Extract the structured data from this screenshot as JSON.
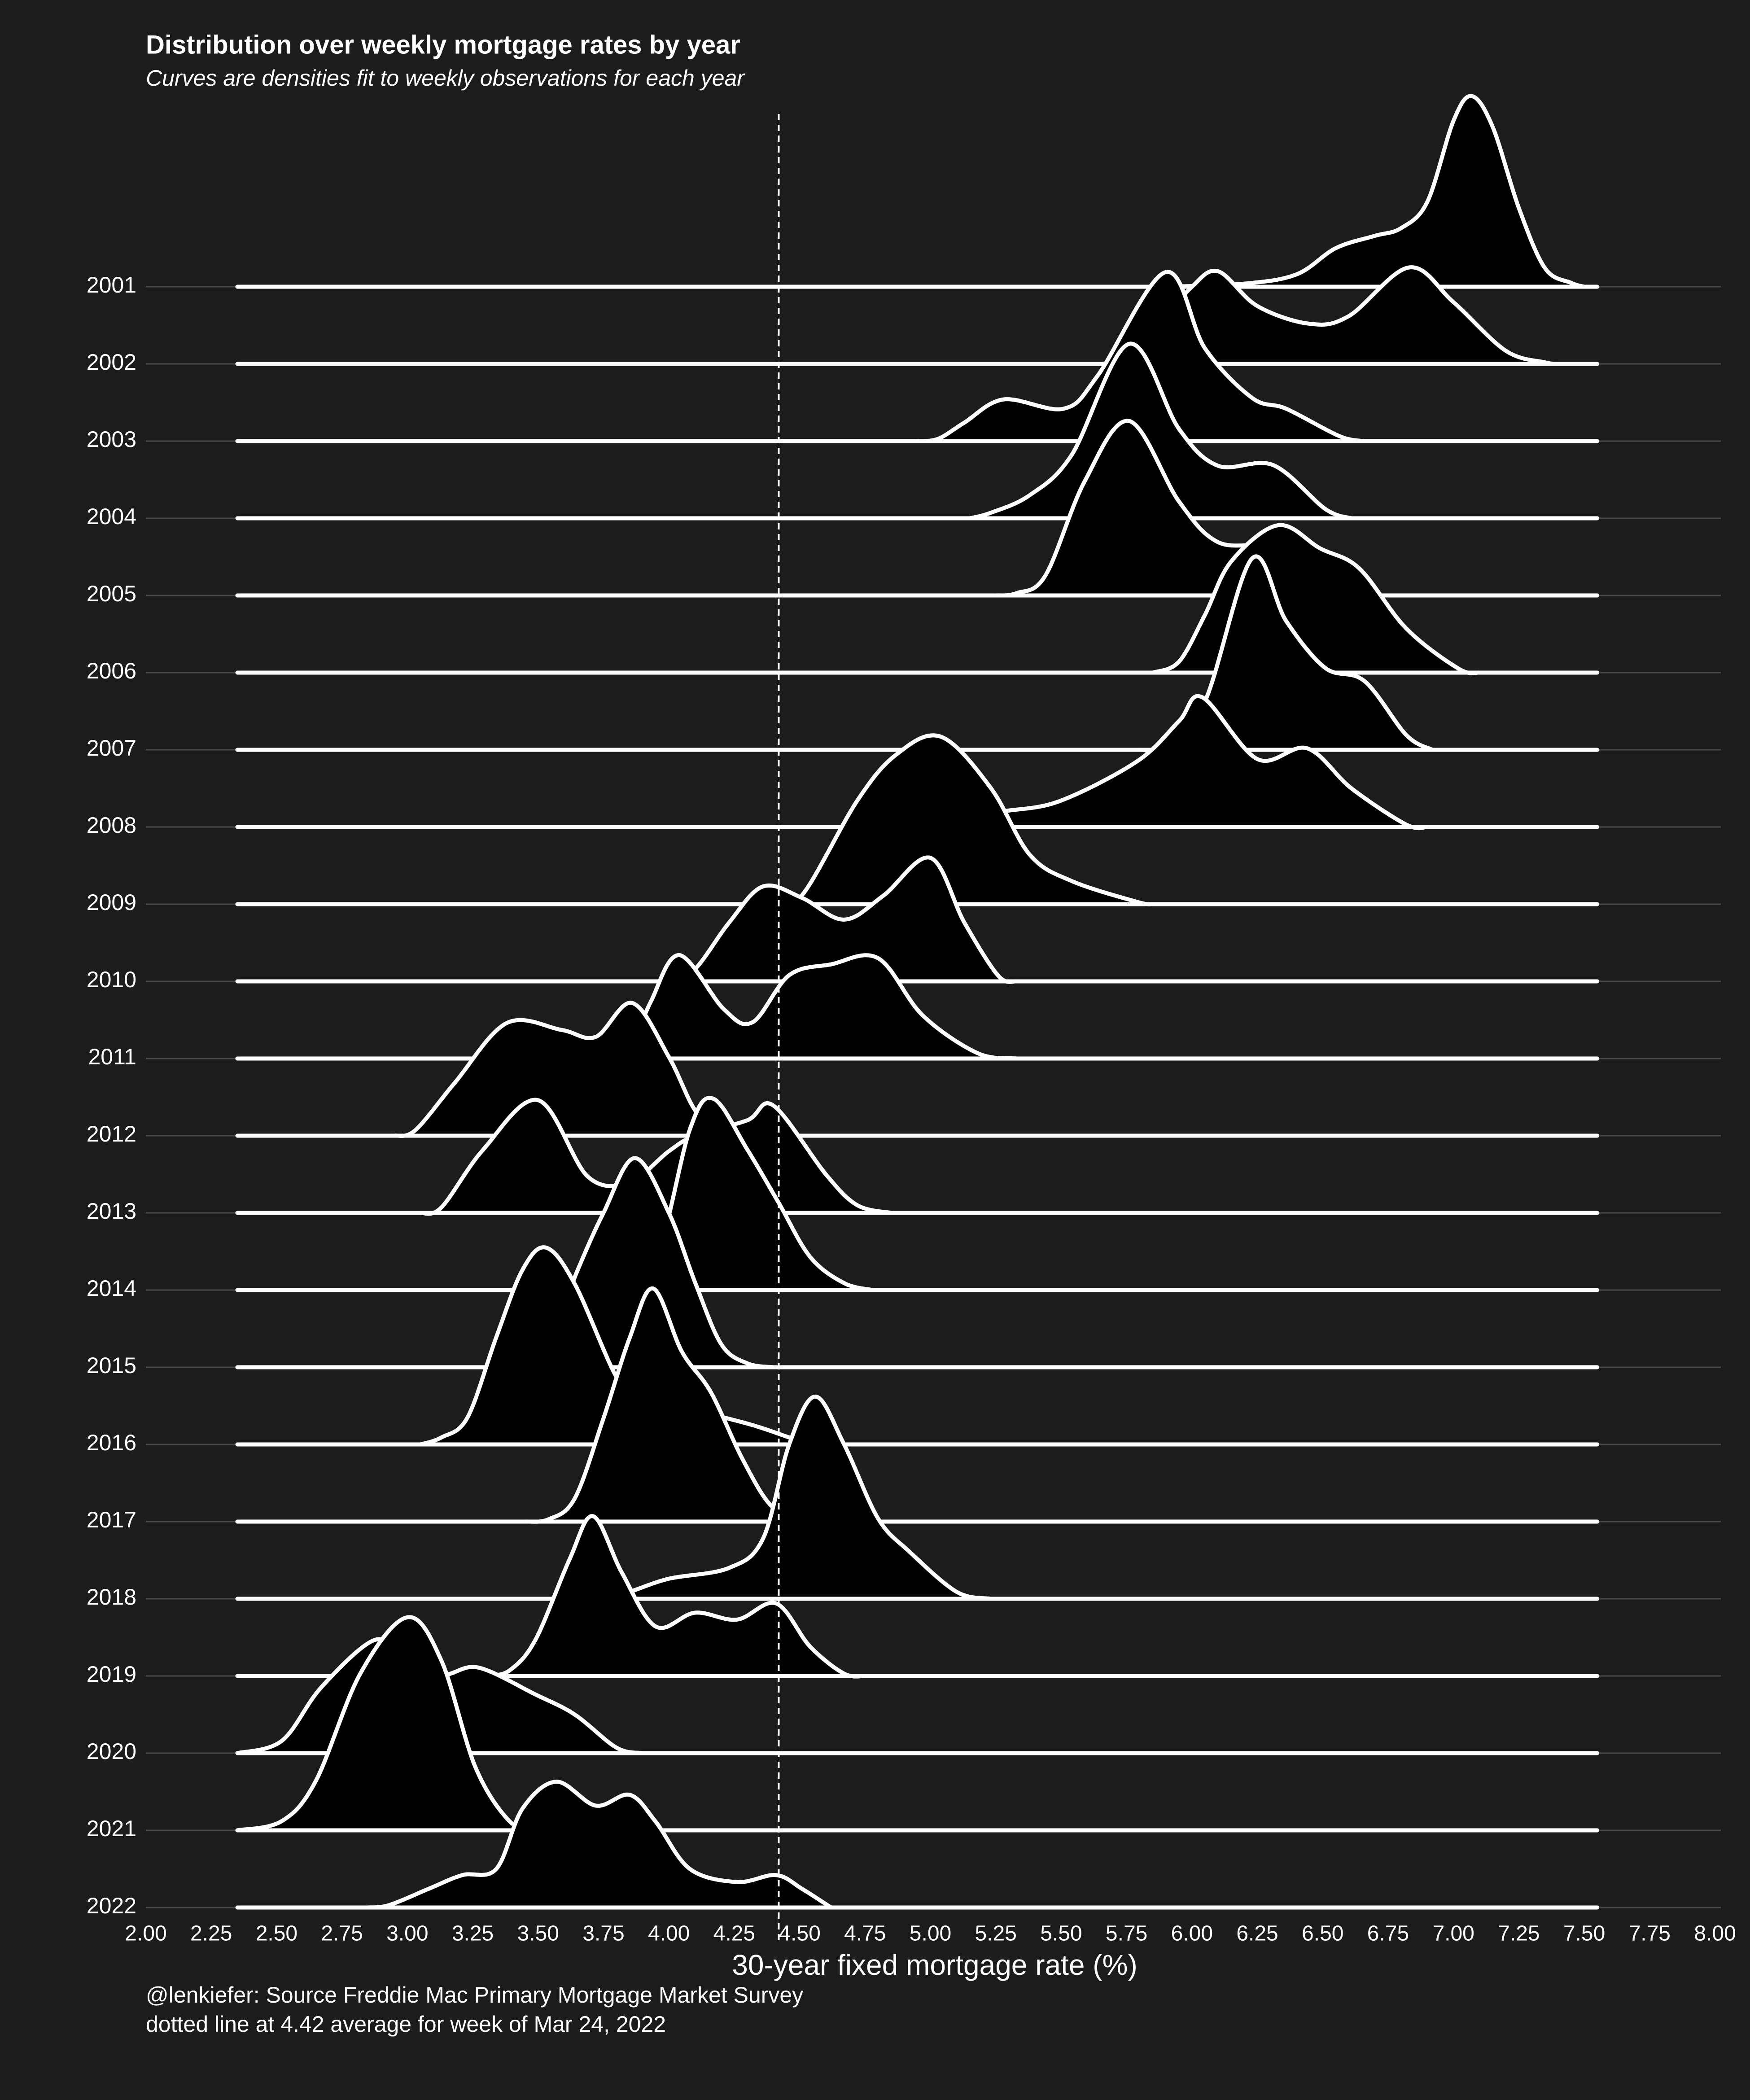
{
  "chart_data": {
    "type": "ridgeline",
    "title": "Distribution over weekly mortgage rates by year",
    "subtitle": "Curves are densities fit to weekly observations for each year",
    "xlabel": "30-year fixed mortgage rate (%)",
    "caption": [
      "@lenkiefer: Source Freddie Mac Primary Mortgage Market Survey",
      "dotted line at 4.42 average for week of Mar 24, 2022"
    ],
    "categories": [
      "2001",
      "2002",
      "2003",
      "2004",
      "2005",
      "2006",
      "2007",
      "2008",
      "2009",
      "2010",
      "2011",
      "2012",
      "2013",
      "2014",
      "2015",
      "2016",
      "2017",
      "2018",
      "2019",
      "2020",
      "2021",
      "2022"
    ],
    "xlim": [
      2,
      8
    ],
    "xticks": [
      {
        "value": 2,
        "label": "2.00"
      },
      {
        "value": 2.25,
        "label": "2.25"
      },
      {
        "value": 2.5,
        "label": "2.50"
      },
      {
        "value": 2.75,
        "label": "2.75"
      },
      {
        "value": 3,
        "label": "3.00"
      },
      {
        "value": 3.25,
        "label": "3.25"
      },
      {
        "value": 3.5,
        "label": "3.50"
      },
      {
        "value": 3.75,
        "label": "3.75"
      },
      {
        "value": 4,
        "label": "4.00"
      },
      {
        "value": 4.25,
        "label": "4.25"
      },
      {
        "value": 4.5,
        "label": "4.50"
      },
      {
        "value": 4.75,
        "label": "4.75"
      },
      {
        "value": 5,
        "label": "5.00"
      },
      {
        "value": 5.25,
        "label": "5.25"
      },
      {
        "value": 5.5,
        "label": "5.50"
      },
      {
        "value": 5.75,
        "label": "5.75"
      },
      {
        "value": 6,
        "label": "6.00"
      },
      {
        "value": 6.25,
        "label": "6.25"
      },
      {
        "value": 6.5,
        "label": "6.50"
      },
      {
        "value": 6.75,
        "label": "6.75"
      },
      {
        "value": 7,
        "label": "7.00"
      },
      {
        "value": 7.25,
        "label": "7.25"
      },
      {
        "value": 7.5,
        "label": "7.50"
      },
      {
        "value": 7.75,
        "label": "7.75"
      },
      {
        "value": 8,
        "label": "8.00"
      }
    ],
    "xrange": [
      2.35,
      7.55
    ],
    "vline": 4.42,
    "grid": true,
    "fill": "#000000",
    "line_color": "#ffffff",
    "series": [
      {
        "x": [
          5.9,
          6.2,
          6.4,
          6.55,
          6.7,
          6.8,
          6.9,
          7.0,
          7.07,
          7.15,
          7.25,
          7.35,
          7.45,
          7.5
        ],
        "values": [
          0,
          0.04,
          0.16,
          0.5,
          0.66,
          0.76,
          1.1,
          2.15,
          2.47,
          2.07,
          1.02,
          0.24,
          0.05,
          0
        ]
      },
      {
        "x": [
          5.7,
          5.8,
          5.9,
          6.0,
          6.1,
          6.25,
          6.45,
          6.6,
          6.83,
          7.0,
          7.2,
          7.35,
          7.4
        ],
        "values": [
          0,
          0.2,
          0.6,
          1.0,
          1.2,
          0.75,
          0.52,
          0.62,
          1.25,
          0.8,
          0.17,
          0.02,
          0
        ]
      },
      {
        "x": [
          4.95,
          5.03,
          5.13,
          5.28,
          5.51,
          5.64,
          5.9,
          6.05,
          6.23,
          6.36,
          6.56,
          6.65
        ],
        "values": [
          0,
          0.03,
          0.24,
          0.54,
          0.42,
          0.85,
          2.19,
          1.2,
          0.56,
          0.42,
          0.07,
          0
        ]
      },
      {
        "x": [
          5.15,
          5.23,
          5.38,
          5.54,
          5.76,
          5.95,
          6.1,
          6.31,
          6.51,
          6.61
        ],
        "values": [
          0,
          0.07,
          0.3,
          0.82,
          2.26,
          1.16,
          0.68,
          0.69,
          0.12,
          0
        ]
      },
      {
        "x": [
          5.25,
          5.33,
          5.44,
          5.59,
          5.76,
          5.95,
          6.1,
          6.31,
          6.5,
          6.6
        ],
        "values": [
          0,
          0.03,
          0.26,
          1.48,
          2.26,
          1.22,
          0.69,
          0.61,
          0.1,
          0
        ]
      },
      {
        "x": [
          5.85,
          5.95,
          6.05,
          6.15,
          6.33,
          6.49,
          6.64,
          6.82,
          7.02,
          7.1
        ],
        "values": [
          0,
          0.14,
          0.75,
          1.44,
          1.91,
          1.61,
          1.35,
          0.57,
          0.05,
          0
        ]
      },
      {
        "x": [
          5.8,
          5.9,
          6.05,
          6.23,
          6.36,
          6.51,
          6.66,
          6.82,
          6.92
        ],
        "values": [
          0,
          0.05,
          0.63,
          2.48,
          1.67,
          1.06,
          0.89,
          0.19,
          0
        ]
      },
      {
        "x": [
          5.05,
          5.13,
          5.26,
          5.49,
          5.79,
          5.95,
          6.04,
          6.25,
          6.44,
          6.61,
          6.82,
          6.9
        ],
        "values": [
          0,
          0.03,
          0.19,
          0.33,
          0.85,
          1.37,
          1.68,
          0.88,
          1.02,
          0.5,
          0.03,
          0
        ]
      },
      {
        "x": [
          4.3,
          4.4,
          4.51,
          4.72,
          4.87,
          5.04,
          5.23,
          5.38,
          5.54,
          5.79,
          5.85
        ],
        "values": [
          0,
          0.02,
          0.12,
          1.34,
          1.94,
          2.17,
          1.51,
          0.64,
          0.3,
          0.03,
          0
        ]
      },
      {
        "x": [
          4.0,
          4.1,
          4.23,
          4.36,
          4.51,
          4.67,
          4.82,
          5.0,
          5.13,
          5.26,
          5.33
        ],
        "values": [
          0,
          0.16,
          0.76,
          1.23,
          1.08,
          0.8,
          1.11,
          1.6,
          0.76,
          0.07,
          0
        ]
      },
      {
        "x": [
          3.78,
          3.85,
          3.93,
          4.04,
          4.21,
          4.32,
          4.46,
          4.62,
          4.8,
          4.97,
          5.18,
          5.33
        ],
        "values": [
          0,
          0.12,
          0.73,
          1.34,
          0.64,
          0.47,
          1.08,
          1.22,
          1.3,
          0.56,
          0.07,
          0
        ]
      },
      {
        "x": [
          2.95,
          3.03,
          3.18,
          3.38,
          3.59,
          3.72,
          3.86,
          4.0,
          4.1,
          4.2,
          4.3
        ],
        "values": [
          0,
          0.07,
          0.68,
          1.46,
          1.37,
          1.28,
          1.72,
          1.02,
          0.33,
          0.02,
          0
        ]
      },
      {
        "x": [
          3.05,
          3.13,
          3.29,
          3.5,
          3.69,
          3.85,
          4.0,
          4.1,
          4.3,
          4.4,
          4.6,
          4.72,
          4.85
        ],
        "values": [
          0,
          0.07,
          0.82,
          1.46,
          0.47,
          0.4,
          0.8,
          1.0,
          1.2,
          1.39,
          0.5,
          0.1,
          0
        ]
      },
      {
        "x": [
          3.7,
          3.8,
          3.95,
          4.08,
          4.17,
          4.3,
          4.42,
          4.54,
          4.67,
          4.78
        ],
        "values": [
          0,
          0.05,
          0.4,
          2.08,
          2.48,
          1.82,
          1.13,
          0.43,
          0.09,
          0
        ]
      },
      {
        "x": [
          3.35,
          3.45,
          3.55,
          3.65,
          3.75,
          3.87,
          4.0,
          4.1,
          4.2,
          4.3,
          4.4
        ],
        "values": [
          0,
          0.05,
          0.4,
          1.25,
          2.0,
          2.71,
          2.0,
          1.1,
          0.3,
          0.05,
          0
        ]
      },
      {
        "x": [
          3.05,
          3.13,
          3.23,
          3.34,
          3.44,
          3.53,
          3.64,
          3.8,
          3.9,
          4.1,
          4.31,
          4.46,
          4.54
        ],
        "values": [
          0,
          0.09,
          0.35,
          1.39,
          2.26,
          2.55,
          2.08,
          0.87,
          0.52,
          0.43,
          0.26,
          0.09,
          0
        ]
      },
      {
        "x": [
          3.45,
          3.54,
          3.64,
          3.75,
          3.85,
          3.94,
          4.05,
          4.16,
          4.28,
          4.39,
          4.5,
          4.6
        ],
        "values": [
          0,
          0.03,
          0.3,
          1.34,
          2.38,
          3.02,
          2.2,
          1.68,
          0.82,
          0.21,
          0.05,
          0
        ]
      },
      {
        "x": [
          3.75,
          3.85,
          4.0,
          4.23,
          4.36,
          4.46,
          4.56,
          4.67,
          4.8,
          4.92,
          5.1,
          5.23
        ],
        "values": [
          0,
          0.09,
          0.26,
          0.4,
          0.78,
          2.0,
          2.62,
          2.0,
          1.04,
          0.61,
          0.09,
          0
        ]
      },
      {
        "x": [
          3.3,
          3.39,
          3.49,
          3.62,
          3.71,
          3.82,
          3.95,
          4.1,
          4.26,
          4.41,
          4.54,
          4.67,
          4.75
        ],
        "values": [
          0,
          0.07,
          0.47,
          1.51,
          2.07,
          1.34,
          0.64,
          0.82,
          0.73,
          0.94,
          0.38,
          0.03,
          0
        ]
      },
      {
        "x": [
          2.35,
          2.52,
          2.67,
          2.87,
          2.98,
          3.13,
          3.27,
          3.49,
          3.64,
          3.8,
          3.9
        ],
        "values": [
          0,
          0.16,
          0.85,
          1.46,
          1.28,
          1.02,
          1.11,
          0.76,
          0.5,
          0.07,
          0
        ]
      },
      {
        "x": [
          2.35,
          2.52,
          2.65,
          2.82,
          3.0,
          3.13,
          3.26,
          3.39,
          3.49
        ],
        "values": [
          0,
          0.12,
          0.64,
          2.03,
          2.76,
          2.2,
          0.82,
          0.12,
          0
        ]
      },
      {
        "x": [
          2.85,
          2.93,
          3.08,
          3.21,
          3.34,
          3.44,
          3.57,
          3.72,
          3.85,
          3.95,
          4.08,
          4.26,
          4.41,
          4.51,
          4.62
        ],
        "values": [
          0,
          0.03,
          0.24,
          0.42,
          0.5,
          1.28,
          1.63,
          1.32,
          1.46,
          1.11,
          0.5,
          0.33,
          0.42,
          0.24,
          0
        ]
      }
    ]
  }
}
